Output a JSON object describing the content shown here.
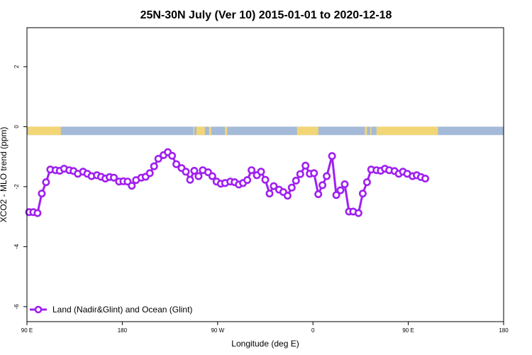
{
  "chart_data": {
    "type": "line",
    "title": "25N-30N July (Ver 10)   2015-01-01 to 2020-12-18",
    "xlabel": "Longitude (deg E)",
    "ylabel": "XCO2 - MLO trend (ppm)",
    "x_ticks": [
      {
        "value": 90,
        "label": "90 E"
      },
      {
        "value": 180,
        "label": "180"
      },
      {
        "value": 270,
        "label": "90 W"
      },
      {
        "value": 360,
        "label": "0"
      },
      {
        "value": 450,
        "label": "90 E"
      },
      {
        "value": 540,
        "label": "180"
      }
    ],
    "y_ticks": [
      {
        "value": 2,
        "label": "2"
      },
      {
        "value": 0,
        "label": "0"
      },
      {
        "value": -2,
        "label": "-2"
      },
      {
        "value": -4,
        "label": "-4"
      },
      {
        "value": -6,
        "label": "-6"
      }
    ],
    "xlim": [
      90,
      540
    ],
    "ylim": [
      -6.5,
      3.3
    ],
    "land_ocean_band": {
      "y_range": [
        -0.28,
        0
      ],
      "land_color": "#f2d676",
      "ocean_color": "#a4bad8",
      "land_segments": [
        [
          91,
          122
        ],
        [
          247,
          248
        ],
        [
          250,
          258
        ],
        [
          262,
          264
        ],
        [
          277,
          279
        ],
        [
          345,
          365
        ],
        [
          409,
          411
        ],
        [
          414,
          415
        ],
        [
          420,
          478
        ]
      ]
    },
    "legend": {
      "position": "bottom-left",
      "entries": [
        {
          "label": "Land (Nadir&Glint) and Ocean (Glint)",
          "color": "#a020f0"
        }
      ]
    },
    "series": [
      {
        "name": "Land (Nadir&Glint) and Ocean (Glint)",
        "color": "#a020f0",
        "points": [
          [
            92,
            -2.85
          ],
          [
            96,
            -2.85
          ],
          [
            100,
            -2.88
          ],
          [
            104,
            -2.23
          ],
          [
            108,
            -1.85
          ],
          [
            112,
            -1.43
          ],
          [
            117,
            -1.45
          ],
          [
            121,
            -1.47
          ],
          [
            125,
            -1.4
          ],
          [
            130,
            -1.45
          ],
          [
            134,
            -1.48
          ],
          [
            138,
            -1.57
          ],
          [
            143,
            -1.5
          ],
          [
            147,
            -1.57
          ],
          [
            151,
            -1.65
          ],
          [
            156,
            -1.62
          ],
          [
            160,
            -1.67
          ],
          [
            164,
            -1.73
          ],
          [
            168,
            -1.68
          ],
          [
            172,
            -1.7
          ],
          [
            177,
            -1.83
          ],
          [
            181,
            -1.82
          ],
          [
            185,
            -1.83
          ],
          [
            189,
            -1.97
          ],
          [
            193,
            -1.78
          ],
          [
            198,
            -1.7
          ],
          [
            202,
            -1.67
          ],
          [
            206,
            -1.55
          ],
          [
            210,
            -1.32
          ],
          [
            214,
            -1.07
          ],
          [
            219,
            -0.95
          ],
          [
            223,
            -0.85
          ],
          [
            227,
            -0.97
          ],
          [
            231,
            -1.25
          ],
          [
            236,
            -1.38
          ],
          [
            240,
            -1.5
          ],
          [
            244,
            -1.77
          ],
          [
            248,
            -1.47
          ],
          [
            252,
            -1.65
          ],
          [
            256,
            -1.45
          ],
          [
            261,
            -1.52
          ],
          [
            265,
            -1.65
          ],
          [
            269,
            -1.83
          ],
          [
            273,
            -1.9
          ],
          [
            277,
            -1.88
          ],
          [
            282,
            -1.83
          ],
          [
            286,
            -1.85
          ],
          [
            290,
            -1.93
          ],
          [
            294,
            -1.88
          ],
          [
            298,
            -1.78
          ],
          [
            302,
            -1.45
          ],
          [
            307,
            -1.62
          ],
          [
            311,
            -1.5
          ],
          [
            315,
            -1.77
          ],
          [
            319,
            -2.23
          ],
          [
            323,
            -1.98
          ],
          [
            328,
            -2.1
          ],
          [
            332,
            -2.18
          ],
          [
            336,
            -2.3
          ],
          [
            340,
            -2.03
          ],
          [
            344,
            -1.8
          ],
          [
            348,
            -1.58
          ],
          [
            353,
            -1.3
          ],
          [
            357,
            -1.57
          ],
          [
            361,
            -1.55
          ],
          [
            365,
            -2.25
          ],
          [
            369,
            -1.95
          ],
          [
            373,
            -1.65
          ],
          [
            378,
            -0.98
          ],
          [
            382,
            -2.28
          ],
          [
            386,
            -2.12
          ],
          [
            390,
            -1.92
          ],
          [
            394,
            -2.83
          ],
          [
            398,
            -2.83
          ],
          [
            403,
            -2.88
          ],
          [
            407,
            -2.23
          ],
          [
            411,
            -1.85
          ],
          [
            415,
            -1.43
          ],
          [
            420,
            -1.45
          ],
          [
            424,
            -1.47
          ],
          [
            428,
            -1.4
          ],
          [
            432,
            -1.45
          ],
          [
            437,
            -1.48
          ],
          [
            441,
            -1.57
          ],
          [
            445,
            -1.5
          ],
          [
            449,
            -1.57
          ],
          [
            454,
            -1.65
          ],
          [
            458,
            -1.62
          ],
          [
            462,
            -1.68
          ],
          [
            466,
            -1.73
          ]
        ]
      }
    ]
  }
}
